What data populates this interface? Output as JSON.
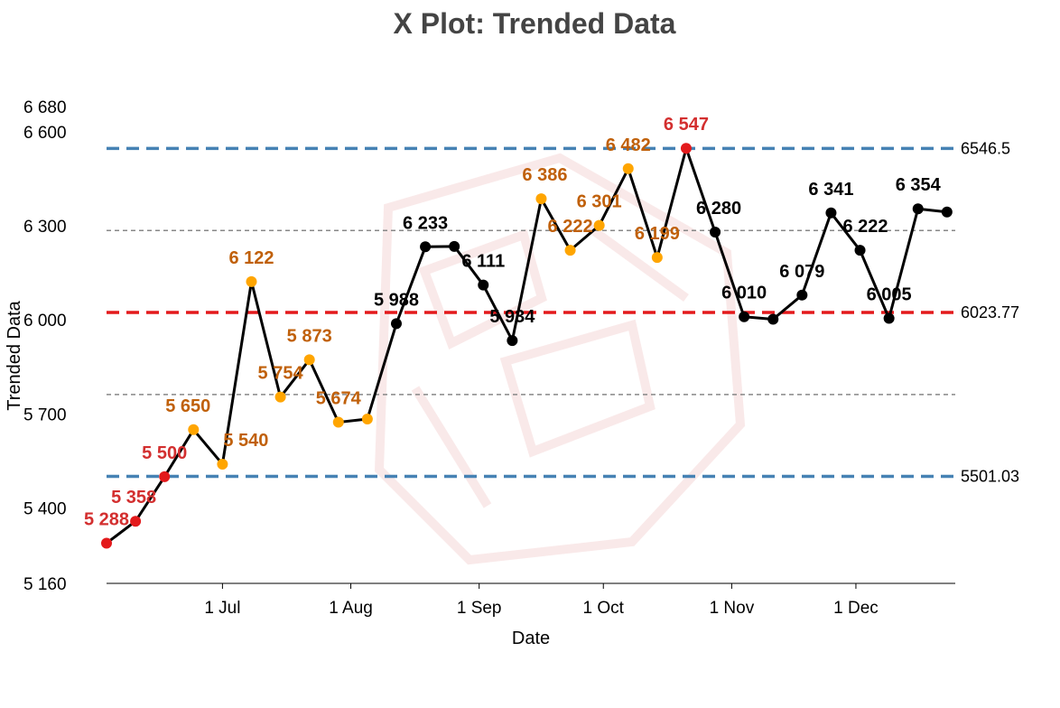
{
  "chart_data": {
    "type": "line",
    "title": "X Plot: Trended Data",
    "xlabel": "Date",
    "ylabel": "Trended Data",
    "ylim": [
      5160,
      6680
    ],
    "y_ticks": [
      {
        "value": 5160,
        "label": "5 160"
      },
      {
        "value": 5400,
        "label": "5 400"
      },
      {
        "value": 5700,
        "label": "5 700"
      },
      {
        "value": 6000,
        "label": "6 000"
      },
      {
        "value": 6300,
        "label": "6 300"
      },
      {
        "value": 6600,
        "label": "6 600"
      },
      {
        "value": 6680,
        "label": "6 680"
      }
    ],
    "x_range": [
      "2023-06-03",
      "2023-12-25"
    ],
    "x_ticks": [
      {
        "date": "2023-07-01",
        "label": "1 Jul"
      },
      {
        "date": "2023-08-01",
        "label": "1 Aug"
      },
      {
        "date": "2023-09-01",
        "label": "1 Sep"
      },
      {
        "date": "2023-10-01",
        "label": "1 Oct"
      },
      {
        "date": "2023-11-01",
        "label": "1 Nov"
      },
      {
        "date": "2023-12-01",
        "label": "1 Dec"
      }
    ],
    "grid": false,
    "series": [
      {
        "points": [
          {
            "date": "2023-06-03",
            "value": 5288,
            "label": "5 288",
            "color": "red"
          },
          {
            "date": "2023-06-10",
            "value": 5358,
            "label": "5 358",
            "color": "red"
          },
          {
            "date": "2023-06-17",
            "value": 5500,
            "label": "5 500",
            "color": "red"
          },
          {
            "date": "2023-06-24",
            "value": 5650,
            "label": "5 650",
            "color": "orange"
          },
          {
            "date": "2023-07-01",
            "value": 5540,
            "label": "5 540",
            "color": "orange"
          },
          {
            "date": "2023-07-08",
            "value": 6122,
            "label": "6 122",
            "color": "orange"
          },
          {
            "date": "2023-07-15",
            "value": 5754,
            "label": "5 754",
            "color": "orange"
          },
          {
            "date": "2023-07-22",
            "value": 5873,
            "label": "5 873",
            "color": "orange"
          },
          {
            "date": "2023-07-29",
            "value": 5674,
            "label": "5 674",
            "color": "orange"
          },
          {
            "date": "2023-08-05",
            "value": 5684,
            "label": "",
            "color": "orange"
          },
          {
            "date": "2023-08-12",
            "value": 5988,
            "label": "5 988",
            "color": "black"
          },
          {
            "date": "2023-08-19",
            "value": 6233,
            "label": "6 233",
            "color": "black"
          },
          {
            "date": "2023-08-26",
            "value": 6234,
            "label": "",
            "color": "black"
          },
          {
            "date": "2023-09-02",
            "value": 6111,
            "label": "6 111",
            "color": "black"
          },
          {
            "date": "2023-09-09",
            "value": 5934,
            "label": "5 934",
            "color": "black"
          },
          {
            "date": "2023-09-16",
            "value": 6386,
            "label": "6 386",
            "color": "orange"
          },
          {
            "date": "2023-09-23",
            "value": 6222,
            "label": "6 222",
            "color": "orange"
          },
          {
            "date": "2023-09-30",
            "value": 6301,
            "label": "6 301",
            "color": "orange"
          },
          {
            "date": "2023-10-07",
            "value": 6482,
            "label": "6 482",
            "color": "orange"
          },
          {
            "date": "2023-10-14",
            "value": 6199,
            "label": "6 199",
            "color": "orange"
          },
          {
            "date": "2023-10-21",
            "value": 6547,
            "label": "6 547",
            "color": "red"
          },
          {
            "date": "2023-10-28",
            "value": 6280,
            "label": "6 280",
            "color": "black"
          },
          {
            "date": "2023-11-04",
            "value": 6010,
            "label": "6 010",
            "color": "black"
          },
          {
            "date": "2023-11-11",
            "value": 6002,
            "label": "",
            "color": "black"
          },
          {
            "date": "2023-11-18",
            "value": 6079,
            "label": "6 079",
            "color": "black"
          },
          {
            "date": "2023-11-25",
            "value": 6341,
            "label": "6 341",
            "color": "black"
          },
          {
            "date": "2023-12-02",
            "value": 6222,
            "label": "6 222",
            "color": "black"
          },
          {
            "date": "2023-12-09",
            "value": 6005,
            "label": "6 005",
            "color": "black"
          },
          {
            "date": "2023-12-16",
            "value": 6354,
            "label": "6 354",
            "color": "black"
          },
          {
            "date": "2023-12-23",
            "value": 6344,
            "label": "",
            "color": "black"
          }
        ]
      }
    ],
    "reference_lines": [
      {
        "value": 6546.5,
        "label": "6546.5",
        "style": "dashed",
        "color": "steelblue"
      },
      {
        "value": 6023.77,
        "label": "6023.77",
        "style": "dashed",
        "color": "red"
      },
      {
        "value": 5501.03,
        "label": "5501.03",
        "style": "dashed",
        "color": "steelblue"
      },
      {
        "value": 6285,
        "label": "",
        "style": "dashed-thin",
        "color": "gray"
      },
      {
        "value": 5762,
        "label": "",
        "style": "dashed-thin",
        "color": "gray"
      }
    ],
    "colors": {
      "line": "#000000",
      "red": "#e31a1c",
      "orange": "#ffa500",
      "black": "#000000",
      "red_label": "#d32f2f",
      "orange_label": "#c0600a",
      "black_label": "#000000",
      "steelblue": "#4682b4",
      "gray": "#888888",
      "title": "#444444"
    }
  }
}
